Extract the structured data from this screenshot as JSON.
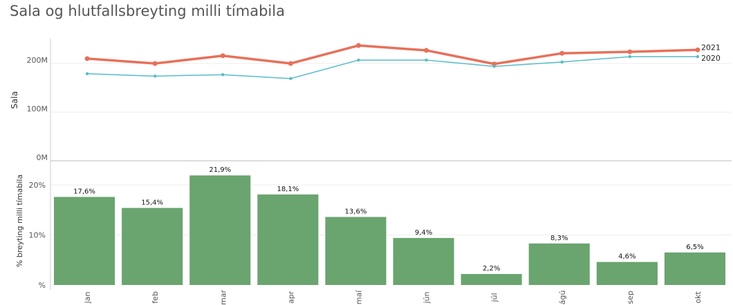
{
  "title": "Sala og hlutfallsbreyting milli tímabila",
  "colors": {
    "series_2021": "#e8705a",
    "series_2020": "#56bcc8",
    "bars": "#6aa46f"
  },
  "chart_data": [
    {
      "type": "line",
      "ylabel": "Sala",
      "categories": [
        "jan",
        "feb",
        "mar",
        "apr",
        "maí",
        "jún",
        "júl",
        "ágú",
        "sep",
        "okt"
      ],
      "yticks": [
        "0M",
        "100M",
        "200M"
      ],
      "ylim": [
        0,
        250000000
      ],
      "grid": true,
      "series": [
        {
          "name": "2021",
          "values": [
            210000000,
            200000000,
            216000000,
            200000000,
            237000000,
            227000000,
            199000000,
            221000000,
            224000000,
            228000000
          ]
        },
        {
          "name": "2020",
          "values": [
            179000000,
            174000000,
            177000000,
            169000000,
            207000000,
            207000000,
            194000000,
            203000000,
            214000000,
            214000000
          ]
        }
      ]
    },
    {
      "type": "bar",
      "ylabel": "% breyting milli tímabila",
      "categories": [
        "jan",
        "feb",
        "mar",
        "apr",
        "maí",
        "jún",
        "júl",
        "ágú",
        "sep",
        "okt"
      ],
      "values": [
        17.6,
        15.4,
        21.9,
        18.1,
        13.6,
        9.4,
        2.2,
        8.3,
        4.6,
        6.5
      ],
      "labels": [
        "17,6%",
        "15,4%",
        "21,9%",
        "18,1%",
        "13,6%",
        "9,4%",
        "2,2%",
        "8,3%",
        "4,6%",
        "6,5%"
      ],
      "yticks": [
        "%",
        "10%",
        "20%"
      ],
      "ylim": [
        0,
        23
      ],
      "grid": true
    }
  ]
}
